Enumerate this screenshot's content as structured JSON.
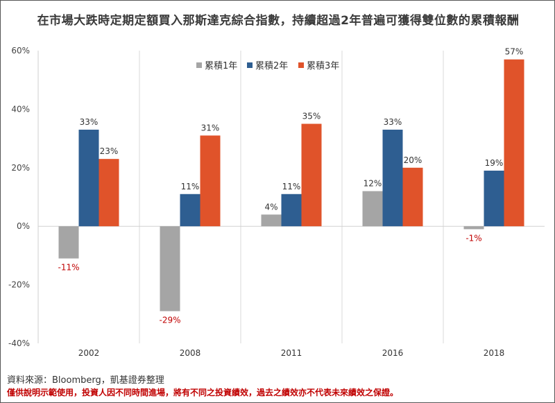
{
  "title": "在市場大跌時定期定額買入那斯達克綜合指數，持續超過2年普遍可獲得雙位數的累積報酬",
  "source": "資料來源：Bloomberg，凱基證券整理",
  "disclaimer": "僅供說明示範使用，投資人因不同時間進場，將有不同之投資績效，過去之績效亦不代表未來績效之保證。",
  "colors": {
    "s1": "#a5a5a5",
    "s2": "#2e5e91",
    "s3": "#e0532a",
    "neg_label": "#c00000"
  },
  "chart_data": {
    "type": "bar",
    "title": "在市場大跌時定期定額買入那斯達克綜合指數，持續超過2年普遍可獲得雙位數的累積報酬",
    "categories": [
      "2002",
      "2008",
      "2011",
      "2016",
      "2018"
    ],
    "series": [
      {
        "name": "累積1年",
        "values": [
          -11,
          -29,
          4,
          12,
          -1
        ],
        "labels": [
          "-11%",
          "-29%",
          "4%",
          "12%",
          "-1%"
        ]
      },
      {
        "name": "累積2年",
        "values": [
          33,
          11,
          11,
          33,
          19
        ],
        "labels": [
          "33%",
          "11%",
          "11%",
          "33%",
          "19%"
        ]
      },
      {
        "name": "累積3年",
        "values": [
          23,
          31,
          35,
          20,
          57
        ],
        "labels": [
          "23%",
          "31%",
          "35%",
          "20%",
          "57%"
        ]
      }
    ],
    "ylim": [
      -40,
      60
    ],
    "yticks": [
      -40,
      -20,
      0,
      20,
      40,
      60
    ],
    "ytick_labels": [
      "-40%",
      "-20%",
      "0%",
      "20%",
      "40%",
      "60%"
    ],
    "legend": "top-center",
    "grid": "vertical category separators"
  }
}
